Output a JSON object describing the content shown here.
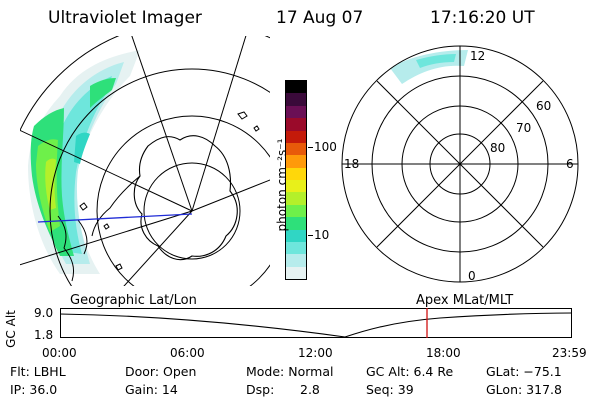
{
  "header": {
    "title": "Ultraviolet Imager",
    "date": "17 Aug 07",
    "time": "17:16:20 UT"
  },
  "colorbar": {
    "label": "photon cm⁻²s⁻¹",
    "ticks": [
      "100",
      "10"
    ],
    "colors": [
      "#000000",
      "#3a0a3a",
      "#6a0f55",
      "#9a0a2a",
      "#c41a0a",
      "#e85a0a",
      "#ff9a0a",
      "#ffd70a",
      "#e8f01a",
      "#b4f02a",
      "#6ef04a",
      "#2ee07a",
      "#30d6c4",
      "#6ee6dc",
      "#b6ecec",
      "#e6f2f2"
    ]
  },
  "polar": {
    "clock_labels": {
      "top": "12",
      "left": "18",
      "right": "6",
      "bottom": "0"
    },
    "lat_labels": [
      "60",
      "70",
      "80"
    ]
  },
  "timeline": {
    "left_label": "Geographic Lat/Lon",
    "right_label": "Apex MLat/MLT",
    "y_axis_label": "GC Alt",
    "y_ticks": [
      "9.0",
      "1.8"
    ],
    "x_ticks": [
      "00:00",
      "06:00",
      "12:00",
      "18:00",
      "23:59"
    ],
    "current_time_marker": "17:16"
  },
  "info": {
    "filter": "Flt: LBHL",
    "ip": "IP: 36.0",
    "door": "Door: Open",
    "gain": "Gain: 14",
    "mode": "Mode: Normal",
    "dsp_label": "Dsp:",
    "dsp_value": "2.8",
    "gc_alt": "GC Alt: 6.4 Re",
    "seq": "Seq: 39",
    "glat": "GLat: −75.1",
    "glon": "GLon: 317.8"
  }
}
